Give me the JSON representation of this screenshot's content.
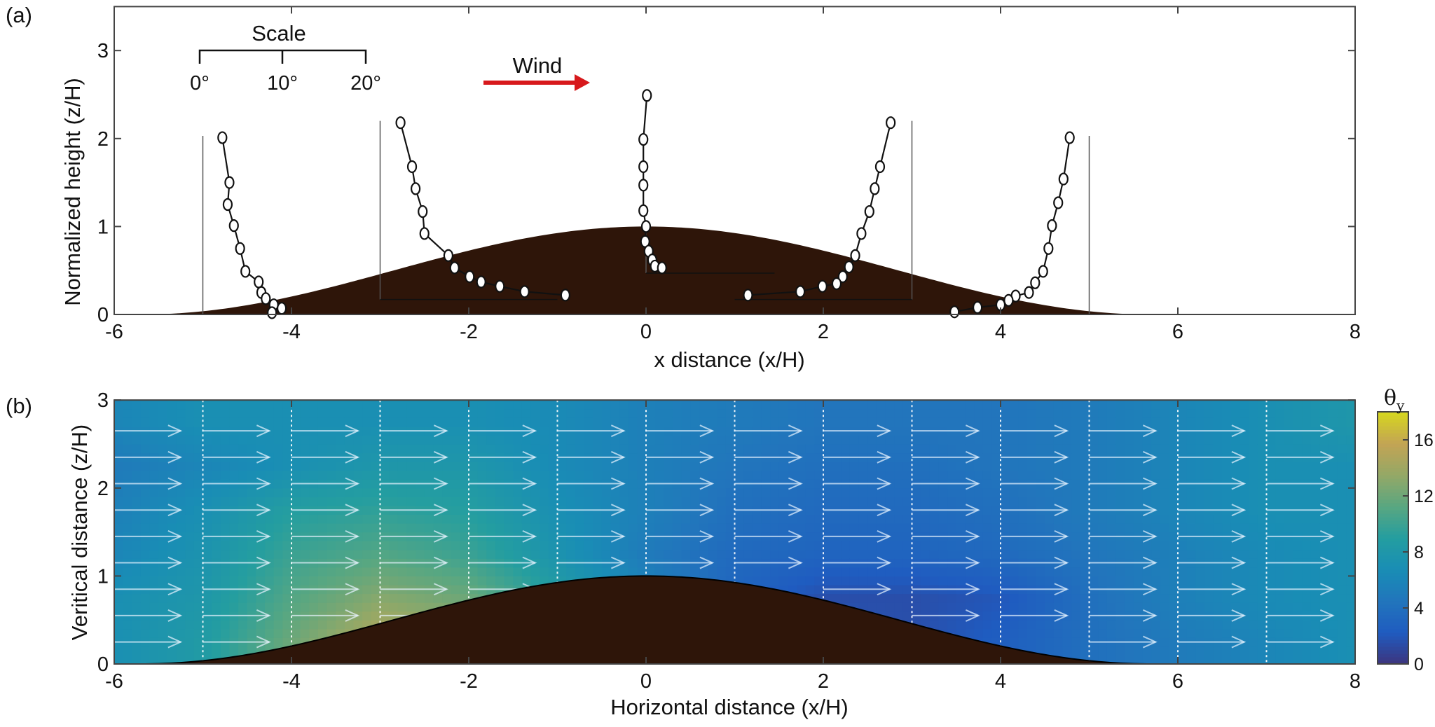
{
  "chart_data": [
    {
      "type": "line",
      "panel_label": "(a)",
      "xlabel": "x distance (x/H)",
      "ylabel": "Normalized height (z/H)",
      "xlim": [
        -6,
        8
      ],
      "ylim": [
        0,
        3.5
      ],
      "xticks": [
        "-6",
        "-4",
        "-2",
        "0",
        "2",
        "4",
        "6",
        "8"
      ],
      "yticks": [
        "0",
        "1",
        "2",
        "3"
      ],
      "grid": false,
      "terrain_color": "#2e1509",
      "scale": {
        "title": "Scale",
        "labels": [
          "0°",
          "10°",
          "20°"
        ]
      },
      "wind": {
        "label": "Wind",
        "color": "#d7191c"
      },
      "profiles": [
        {
          "station_x": -5,
          "points": [
            [
              -4.78,
              2.01
            ],
            [
              -4.7,
              1.5
            ],
            [
              -4.72,
              1.25
            ],
            [
              -4.65,
              1.01
            ],
            [
              -4.58,
              0.75
            ],
            [
              -4.52,
              0.49
            ],
            [
              -4.37,
              0.37
            ],
            [
              -4.34,
              0.25
            ],
            [
              -4.29,
              0.18
            ],
            [
              -4.2,
              0.11
            ],
            [
              -4.11,
              0.07
            ],
            [
              -4.22,
              0.02
            ]
          ]
        },
        {
          "station_x": -3,
          "points": [
            [
              -2.77,
              2.18
            ],
            [
              -2.64,
              1.68
            ],
            [
              -2.6,
              1.43
            ],
            [
              -2.52,
              1.17
            ],
            [
              -2.5,
              0.92
            ],
            [
              -2.23,
              0.67
            ],
            [
              -2.16,
              0.53
            ],
            [
              -1.99,
              0.43
            ],
            [
              -1.86,
              0.37
            ],
            [
              -1.65,
              0.32
            ],
            [
              -1.37,
              0.26
            ],
            [
              -0.91,
              0.22
            ]
          ]
        },
        {
          "station_x": 0,
          "points": [
            [
              0.01,
              2.49
            ],
            [
              -0.03,
              1.99
            ],
            [
              -0.03,
              1.68
            ],
            [
              -0.03,
              1.47
            ],
            [
              -0.03,
              1.18
            ],
            [
              0.0,
              1.0
            ],
            [
              -0.01,
              0.83
            ],
            [
              0.03,
              0.72
            ],
            [
              0.07,
              0.62
            ],
            [
              0.1,
              0.55
            ],
            [
              0.18,
              0.53
            ]
          ]
        },
        {
          "station_x": 3,
          "points": [
            [
              2.76,
              2.18
            ],
            [
              2.64,
              1.68
            ],
            [
              2.58,
              1.43
            ],
            [
              2.52,
              1.17
            ],
            [
              2.43,
              0.92
            ],
            [
              2.36,
              0.67
            ],
            [
              2.29,
              0.54
            ],
            [
              2.22,
              0.43
            ],
            [
              2.15,
              0.35
            ],
            [
              1.99,
              0.32
            ],
            [
              1.74,
              0.26
            ],
            [
              1.15,
              0.22
            ]
          ]
        },
        {
          "station_x": 5,
          "points": [
            [
              4.78,
              2.01
            ],
            [
              4.71,
              1.54
            ],
            [
              4.65,
              1.27
            ],
            [
              4.58,
              1.01
            ],
            [
              4.54,
              0.75
            ],
            [
              4.48,
              0.49
            ],
            [
              4.39,
              0.36
            ],
            [
              4.32,
              0.25
            ],
            [
              4.17,
              0.21
            ],
            [
              4.09,
              0.16
            ],
            [
              4.0,
              0.11
            ],
            [
              3.74,
              0.08
            ],
            [
              3.48,
              0.03
            ]
          ]
        }
      ]
    },
    {
      "type": "heatmap",
      "panel_label": "(b)",
      "xlabel": "Horizontal distance (x/H)",
      "ylabel": "Veritical distance (z/H)",
      "xlim": [
        -6,
        8
      ],
      "ylim": [
        0,
        3
      ],
      "xticks": [
        "-6",
        "-4",
        "-2",
        "0",
        "2",
        "4",
        "6",
        "8"
      ],
      "yticks": [
        "0",
        "1",
        "2",
        "3"
      ],
      "colorbar": {
        "label": "θ",
        "label_sub": "y",
        "range": [
          0,
          18
        ],
        "ticks": [
          "0",
          "4",
          "8",
          "12",
          "16"
        ],
        "colormap": "parula"
      },
      "x": [
        -6,
        -5,
        -4,
        -3,
        -2,
        -1,
        0,
        1,
        2,
        3,
        4,
        5,
        6,
        7,
        8
      ],
      "z": [
        0.25,
        0.75,
        1.25,
        1.75,
        2.25,
        2.75
      ],
      "values": [
        [
          7,
          8.5,
          12,
          15,
          14,
          9,
          6,
          3,
          2,
          1.5,
          2.5,
          4,
          5,
          6,
          7
        ],
        [
          7,
          8,
          11,
          13,
          12,
          9,
          6,
          3,
          1.5,
          1.5,
          2,
          4,
          5.5,
          6.5,
          7
        ],
        [
          6,
          7.5,
          10,
          11,
          10,
          7.5,
          5,
          3.5,
          3,
          3,
          3.5,
          4.5,
          5.5,
          6.5,
          7
        ],
        [
          5.5,
          7,
          9,
          9.5,
          9,
          7,
          5.5,
          4,
          3.5,
          3.5,
          4,
          5,
          6,
          7,
          7
        ],
        [
          5,
          6,
          7,
          8,
          8,
          6.5,
          5.5,
          4.5,
          4,
          4,
          4.5,
          5,
          6,
          7,
          7
        ],
        [
          6,
          7,
          7,
          7,
          7,
          6.5,
          5.5,
          5,
          4.5,
          4.5,
          4.5,
          5,
          6,
          7,
          8
        ]
      ],
      "vector_stations_x": [
        -5,
        -4,
        -3,
        -2,
        -1,
        0,
        1,
        2,
        3,
        4,
        5,
        6,
        7
      ],
      "terrain_color": "#2e1509"
    }
  ]
}
